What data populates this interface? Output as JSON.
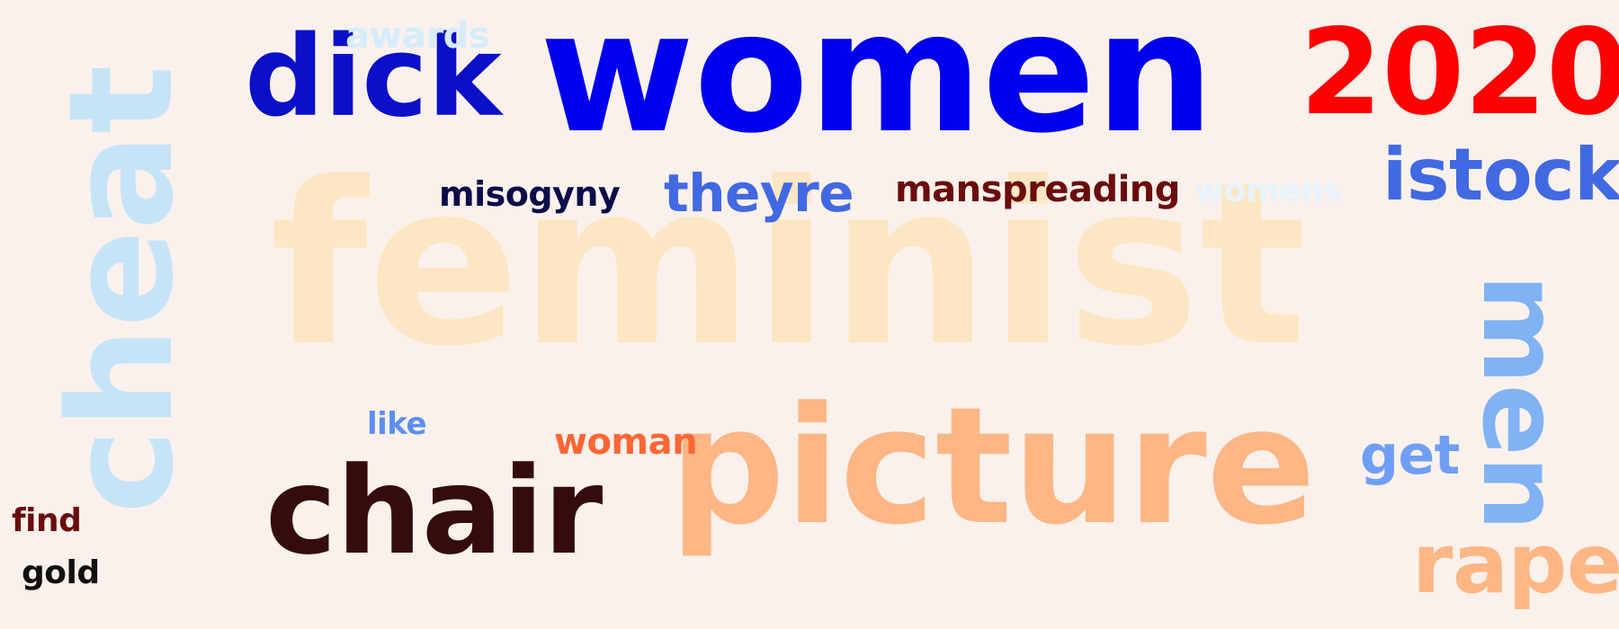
{
  "words": {
    "feminist": {
      "text": "feminist",
      "color": "#fde6c3"
    },
    "women": {
      "text": "women",
      "color": "#0000ee"
    },
    "picture": {
      "text": "picture",
      "color": "#fdb684"
    },
    "chair": {
      "text": "chair",
      "color": "#340c0c"
    },
    "cheat": {
      "text": "cheat",
      "color": "#c6e4f8"
    },
    "dick": {
      "text": "dick",
      "color": "#0a10c8"
    },
    "year2020": {
      "text": "2020",
      "color": "#ff0000"
    },
    "istock": {
      "text": "istock",
      "color": "#4169e1"
    },
    "men": {
      "text": "men",
      "color": "#80b2f4"
    },
    "rape": {
      "text": "rape",
      "color": "#fdb684"
    },
    "theyre": {
      "text": "theyre",
      "color": "#4169e1"
    },
    "manspreading": {
      "text": "manspreading",
      "color": "#6b0c0c"
    },
    "misogyny": {
      "text": "misogyny",
      "color": "#0b0b4a"
    },
    "womens": {
      "text": "womens",
      "color": "#e6f4fd"
    },
    "awards": {
      "text": "awards",
      "color": "#d6ecfb"
    },
    "like": {
      "text": "like",
      "color": "#5b8ff0"
    },
    "woman": {
      "text": "woman",
      "color": "#ff6633"
    },
    "get": {
      "text": "get",
      "color": "#6f9ff5"
    },
    "find": {
      "text": "find",
      "color": "#6b0c0c"
    },
    "gold": {
      "text": "gold",
      "color": "#101010"
    }
  }
}
